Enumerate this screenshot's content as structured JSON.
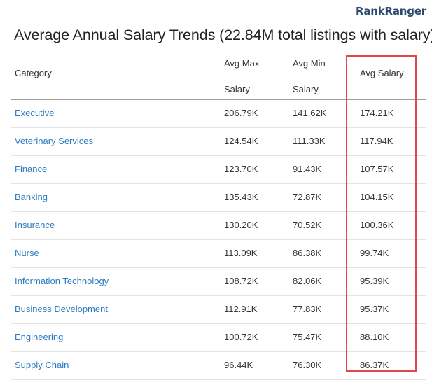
{
  "brand": {
    "part1": "Rank",
    "part2": "Ranger"
  },
  "title": "Average Annual Salary Trends (22.84M total listings with salary)",
  "header": {
    "category": "Category",
    "avg_max_line1": "Avg Max",
    "avg_max_line2": "Salary",
    "avg_min_line1": "Avg Min",
    "avg_min_line2": "Salary",
    "avg_salary": "Avg Salary"
  },
  "rows": [
    {
      "category": "Executive",
      "avg_max": "206.79K",
      "avg_min": "141.62K",
      "avg": "174.21K"
    },
    {
      "category": "Veterinary Services",
      "avg_max": "124.54K",
      "avg_min": "111.33K",
      "avg": "117.94K"
    },
    {
      "category": "Finance",
      "avg_max": "123.70K",
      "avg_min": "91.43K",
      "avg": "107.57K"
    },
    {
      "category": "Banking",
      "avg_max": "135.43K",
      "avg_min": "72.87K",
      "avg": "104.15K"
    },
    {
      "category": "Insurance",
      "avg_max": "130.20K",
      "avg_min": "70.52K",
      "avg": "100.36K"
    },
    {
      "category": "Nurse",
      "avg_max": "113.09K",
      "avg_min": "86.38K",
      "avg": "99.74K"
    },
    {
      "category": "Information Technology",
      "avg_max": "108.72K",
      "avg_min": "82.06K",
      "avg": "95.39K"
    },
    {
      "category": "Business Development",
      "avg_max": "112.91K",
      "avg_min": "77.83K",
      "avg": "95.37K"
    },
    {
      "category": "Engineering",
      "avg_max": "100.72K",
      "avg_min": "75.47K",
      "avg": "88.10K"
    },
    {
      "category": "Supply Chain",
      "avg_max": "96.44K",
      "avg_min": "76.30K",
      "avg": "86.37K"
    }
  ],
  "colors": {
    "link": "#2b7bc2",
    "highlight_border": "#e0484a",
    "brand": "#2c4a6e"
  }
}
